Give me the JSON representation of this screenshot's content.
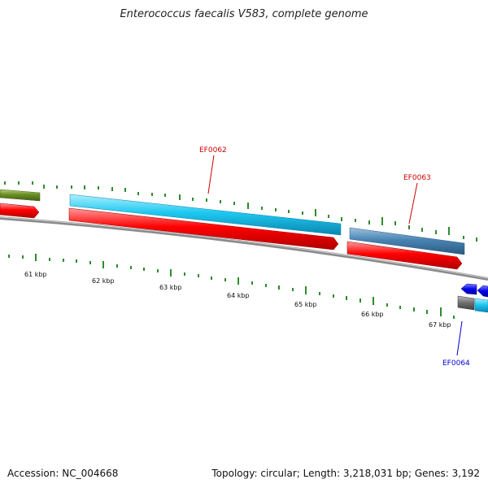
{
  "title": "Enterococcus faecalis V583, complete genome",
  "footer": {
    "accession": "Accession: NC_004668",
    "stats": "Topology: circular; Length: 3,218,031 bp; Genes: 3,192"
  },
  "scale_labels": [
    "61 kbp",
    "62 kbp",
    "63 kbp",
    "64 kbp",
    "65 kbp",
    "66 kbp",
    "67 kbp"
  ],
  "gene_labels": [
    {
      "text": "EF0062",
      "color": "#cc0000"
    },
    {
      "text": "EF0063",
      "color": "#cc0000"
    },
    {
      "text": "EF0064",
      "color": "#0000cc"
    }
  ],
  "colors": {
    "backbone": "#8a8a8a",
    "tick": "#2e8b2e",
    "cds_red": "#ff0000",
    "gene_cyan": "#1ec8f0",
    "gene_steelblue": "#4a84b4",
    "gene_olive": "#6b8e23",
    "gene_blue": "#0000ee",
    "gene_gray": "#6e6e6e"
  }
}
